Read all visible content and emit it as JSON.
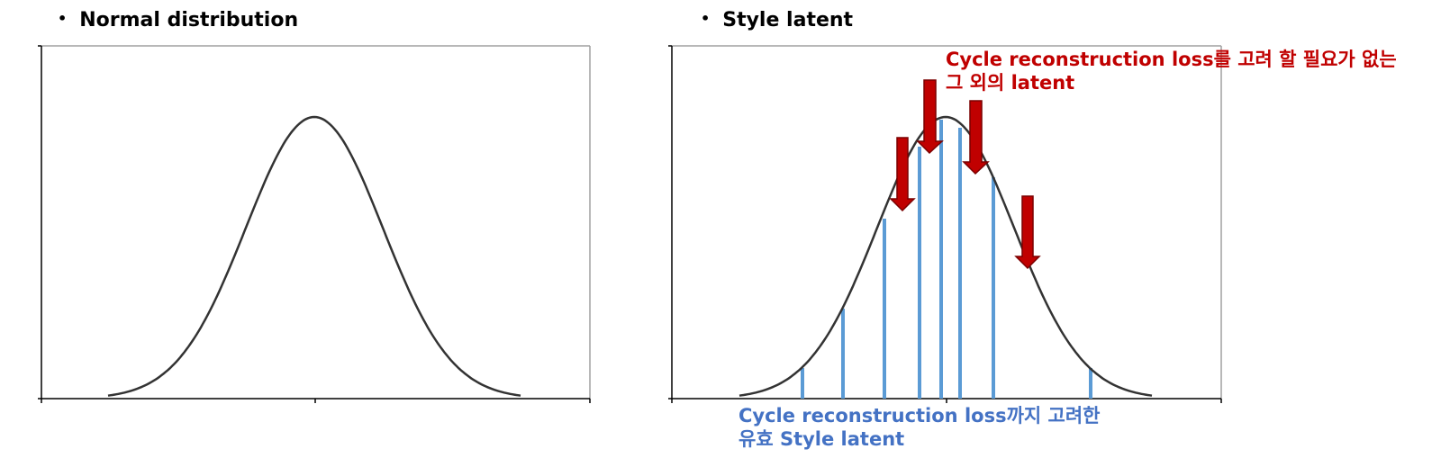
{
  "left_panel": {
    "bullet": "•",
    "title": "Normal distribution"
  },
  "right_panel": {
    "bullet": "•",
    "title": "Style latent",
    "annotation_red": {
      "line1": "Cycle reconstruction loss를 고려 할 필요가 없는",
      "line2": "그 외의 latent",
      "color": "#c00000"
    },
    "annotation_blue": {
      "line1": "Cycle reconstruction loss까지 고려한",
      "line2": "유효 Style latent",
      "color": "#4472c4"
    }
  },
  "colors": {
    "curve": "#333333",
    "axis": "#000000",
    "frame": "#a0a0a0",
    "sample_line": "#5b9bd5",
    "arrow_fill": "#c00000",
    "arrow_stroke": "#7a0000"
  }
}
